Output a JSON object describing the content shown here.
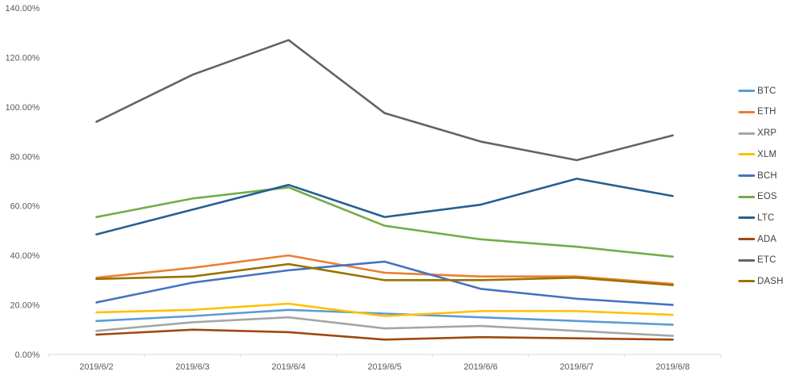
{
  "chart_data": {
    "type": "line",
    "title": "",
    "xlabel": "",
    "ylabel": "",
    "grid": false,
    "legend_position": "right",
    "ylim": [
      0,
      140
    ],
    "y_tick_step": 20,
    "y_tick_labels": [
      "0.00%",
      "20.00%",
      "40.00%",
      "60.00%",
      "80.00%",
      "100.00%",
      "120.00%",
      "140.00%"
    ],
    "categories": [
      "2019/6/2",
      "2019/6/3",
      "2019/6/4",
      "2019/6/5",
      "2019/6/6",
      "2019/6/7",
      "2019/6/8"
    ],
    "value_unit": "percent",
    "series": [
      {
        "name": "BTC",
        "color": "#5B9BD5",
        "values": [
          13.5,
          15.5,
          18.0,
          16.5,
          15.0,
          13.5,
          12.0
        ]
      },
      {
        "name": "ETH",
        "color": "#ED7D31",
        "values": [
          31.0,
          35.0,
          40.0,
          33.0,
          31.5,
          31.5,
          28.5
        ]
      },
      {
        "name": "XRP",
        "color": "#A5A5A5",
        "values": [
          9.5,
          13.0,
          15.0,
          10.5,
          11.5,
          9.5,
          7.5
        ]
      },
      {
        "name": "XLM",
        "color": "#FFC000",
        "values": [
          17.0,
          18.0,
          20.5,
          15.5,
          17.5,
          17.5,
          16.0
        ]
      },
      {
        "name": "BCH",
        "color": "#4472C4",
        "values": [
          21.0,
          29.0,
          34.0,
          37.5,
          26.5,
          22.5,
          20.0
        ]
      },
      {
        "name": "EOS",
        "color": "#70AD47",
        "values": [
          55.5,
          63.0,
          67.5,
          52.0,
          46.5,
          43.5,
          39.5
        ]
      },
      {
        "name": "LTC",
        "color": "#255E91",
        "values": [
          48.5,
          58.5,
          68.5,
          55.5,
          60.5,
          71.0,
          64.0
        ]
      },
      {
        "name": "ADA",
        "color": "#9E480E",
        "values": [
          8.0,
          10.0,
          9.0,
          6.0,
          7.0,
          6.5,
          6.0
        ]
      },
      {
        "name": "ETC",
        "color": "#636363",
        "values": [
          94.0,
          113.0,
          127.0,
          97.5,
          86.0,
          78.5,
          88.5
        ]
      },
      {
        "name": "DASH",
        "color": "#997300",
        "values": [
          30.5,
          31.5,
          36.5,
          30.0,
          30.0,
          31.0,
          28.0
        ]
      }
    ],
    "axis_line_color": "#D9D9D9",
    "axis_text_color": "#595959"
  }
}
